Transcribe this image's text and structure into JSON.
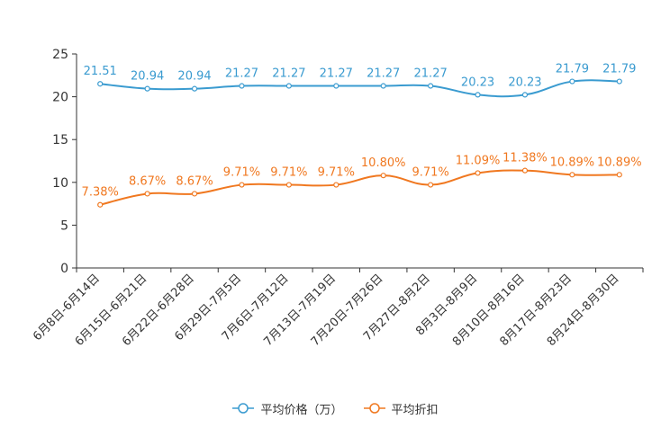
{
  "chart_data": {
    "type": "line",
    "categories": [
      "6月8日-6月14日",
      "6月15日-6月21日",
      "6月22日-6月28日",
      "6月29日-7月5日",
      "7月6日-7月12日",
      "7月13日-7月19日",
      "7月20日-7月26日",
      "7月27日-8月2日",
      "8月3日-8月9日",
      "8月10日-8月16日",
      "8月17日-8月23日",
      "8月24日-8月30日"
    ],
    "y_ticks": [
      "0",
      "5",
      "10",
      "15",
      "20",
      "25"
    ],
    "ylim": [
      0,
      25
    ],
    "series": [
      {
        "name": "平均价格（万）",
        "color": "#3a9bd0",
        "values": [
          21.51,
          20.94,
          20.94,
          21.27,
          21.27,
          21.27,
          21.27,
          21.27,
          20.23,
          20.23,
          21.79,
          21.79
        ],
        "labels": [
          "21.51",
          "20.94",
          "20.94",
          "21.27",
          "21.27",
          "21.27",
          "21.27",
          "21.27",
          "20.23",
          "20.23",
          "21.79",
          "21.79"
        ]
      },
      {
        "name": "平均折扣",
        "color": "#f07820",
        "values": [
          7.38,
          8.67,
          8.67,
          9.71,
          9.71,
          9.71,
          10.8,
          9.71,
          11.09,
          11.38,
          10.89,
          10.89
        ],
        "labels": [
          "7.38%",
          "8.67%",
          "8.67%",
          "9.71%",
          "9.71%",
          "9.71%",
          "10.80%",
          "9.71%",
          "11.09%",
          "11.38%",
          "10.89%",
          "10.89%"
        ]
      }
    ]
  },
  "legend": {
    "items": [
      {
        "label": "平均价格（万）"
      },
      {
        "label": "平均折扣"
      }
    ]
  }
}
